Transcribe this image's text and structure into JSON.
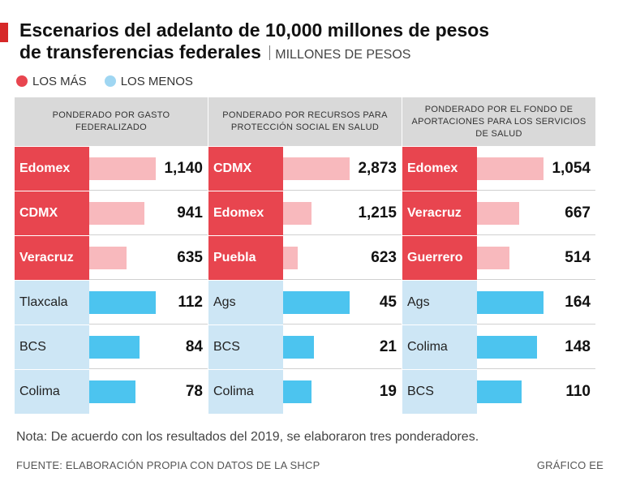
{
  "title_line1": "Escenarios del adelanto de 10,000 millones de pesos",
  "title_line2": "de transferencias federales",
  "units": "MILLONES DE PESOS",
  "legend": {
    "mas": "LOS MÁS",
    "menos": "LOS MENOS"
  },
  "colors": {
    "accent": "#d62828",
    "mas_label": "#e8454f",
    "mas_bar": "#f8b9bd",
    "menos_label": "#cde6f5",
    "menos_bar": "#4cc4ef",
    "header": "#d9d9d9"
  },
  "chart_data": [
    {
      "type": "bar",
      "title": "PONDERADO POR GASTO FEDERALIZADO",
      "mas": {
        "categories": [
          "Edomex",
          "CDMX",
          "Veracruz"
        ],
        "values": [
          1140,
          941,
          635
        ],
        "labels": [
          "1,140",
          "941",
          "635"
        ]
      },
      "menos": {
        "categories": [
          "Tlaxcala",
          "BCS",
          "Colima"
        ],
        "values": [
          112,
          84,
          78
        ],
        "labels": [
          "112",
          "84",
          "78"
        ]
      }
    },
    {
      "type": "bar",
      "title": "PONDERADO POR RECURSOS PARA PROTECCIÓN SOCIAL EN SALUD",
      "mas": {
        "categories": [
          "CDMX",
          "Edomex",
          "Puebla"
        ],
        "values": [
          2873,
          1215,
          623
        ],
        "labels": [
          "2,873",
          "1,215",
          "623"
        ]
      },
      "menos": {
        "categories": [
          "Ags",
          "BCS",
          "Colima"
        ],
        "values": [
          45,
          21,
          19
        ],
        "labels": [
          "45",
          "21",
          "19"
        ]
      }
    },
    {
      "type": "bar",
      "title": "PONDERADO POR EL FONDO DE APORTACIONES PARA LOS SERVICIOS DE SALUD",
      "mas": {
        "categories": [
          "Edomex",
          "Veracruz",
          "Guerrero"
        ],
        "values": [
          1054,
          667,
          514
        ],
        "labels": [
          "1,054",
          "667",
          "514"
        ]
      },
      "menos": {
        "categories": [
          "Ags",
          "Colima",
          "BCS"
        ],
        "values": [
          164,
          148,
          110
        ],
        "labels": [
          "164",
          "148",
          "110"
        ]
      }
    }
  ],
  "note": "Nota: De acuerdo con los resultados del 2019, se elaboraron tres ponderadores.",
  "source": "FUENTE: ELABORACIÓN PROPIA CON DATOS DE LA SHCP",
  "credit": "GRÁFICO EE"
}
